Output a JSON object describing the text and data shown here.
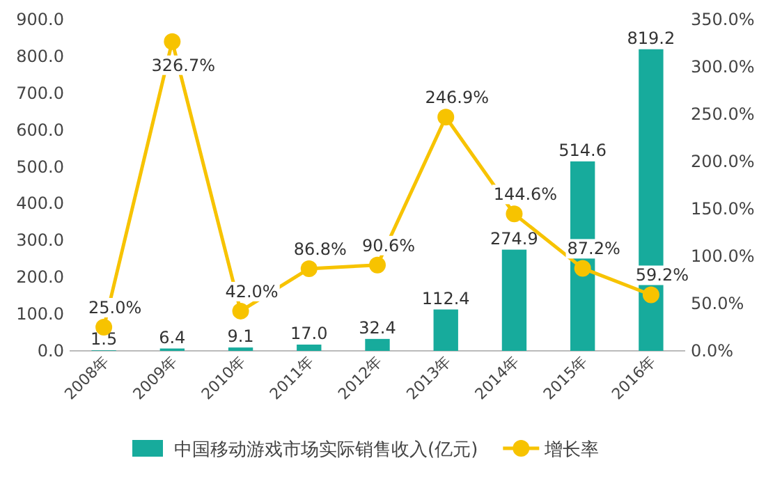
{
  "chart_data": {
    "type": "bar",
    "categories": [
      "2008年",
      "2009年",
      "2010年",
      "2011年",
      "2012年",
      "2013年",
      "2014年",
      "2015年",
      "2016年"
    ],
    "series": [
      {
        "name": "中国移动游戏市场实际销售收入(亿元)",
        "color": "#17ab9c",
        "values": [
          1.5,
          6.4,
          9.1,
          17.0,
          32.4,
          112.4,
          274.9,
          514.6,
          819.2
        ],
        "value_labels": [
          "1.5",
          "6.4",
          "9.1",
          "17.0",
          "32.4",
          "112.4",
          "274.9",
          "514.6",
          "819.2"
        ]
      },
      {
        "name": "增长率",
        "type": "line",
        "axis": "y2",
        "color": "#f7c300",
        "marker": "circle",
        "values": [
          25.0,
          326.7,
          42.0,
          86.8,
          90.6,
          246.9,
          144.6,
          87.2,
          59.2
        ],
        "value_labels": [
          "25.0%",
          "326.7%",
          "42.0%",
          "86.8%",
          "90.6%",
          "246.9%",
          "144.6%",
          "87.2%",
          "59.2%"
        ]
      }
    ],
    "ylim": [
      0,
      900
    ],
    "yticks": [
      {
        "value": 0,
        "label": "0.0"
      },
      {
        "value": 100,
        "label": "100.0"
      },
      {
        "value": 200,
        "label": "200.0"
      },
      {
        "value": 300,
        "label": "300.0"
      },
      {
        "value": 400,
        "label": "400.0"
      },
      {
        "value": 500,
        "label": "500.0"
      },
      {
        "value": 600,
        "label": "600.0"
      },
      {
        "value": 700,
        "label": "700.0"
      },
      {
        "value": 800,
        "label": "800.0"
      },
      {
        "value": 900,
        "label": "900.0"
      }
    ],
    "y2lim": [
      0,
      350
    ],
    "y2ticks": [
      {
        "value": 0,
        "label": "0.0%"
      },
      {
        "value": 50,
        "label": "50.0%"
      },
      {
        "value": 100,
        "label": "100.0%"
      },
      {
        "value": 150,
        "label": "150.0%"
      },
      {
        "value": 200,
        "label": "200.0%"
      },
      {
        "value": 250,
        "label": "250.0%"
      },
      {
        "value": 300,
        "label": "300.0%"
      },
      {
        "value": 350,
        "label": "350.0%"
      }
    ],
    "legend": "bottom",
    "grid": false
  }
}
